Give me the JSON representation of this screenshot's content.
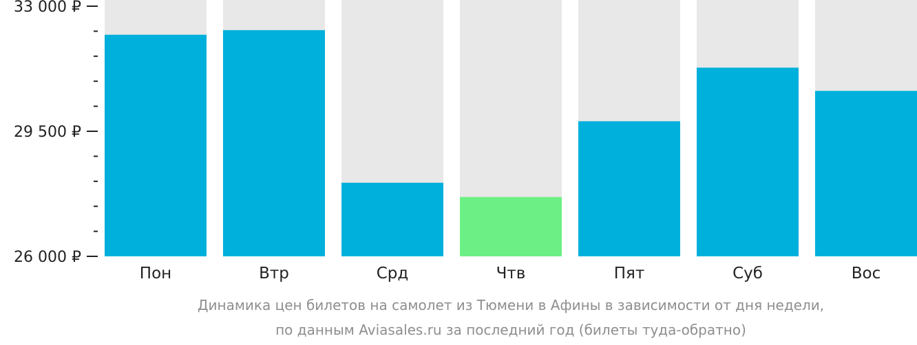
{
  "chart_data": {
    "type": "bar",
    "categories": [
      "Пон",
      "Втр",
      "Срд",
      "Чтв",
      "Пят",
      "Суб",
      "Вос"
    ],
    "values": [
      32200,
      32330,
      28060,
      27660,
      29780,
      31280,
      30630
    ],
    "ylim": [
      26000,
      33000
    ],
    "yticks": [
      {
        "value": 33000,
        "label": "33 000 ₽"
      },
      {
        "value": 29500,
        "label": "29 500 ₽"
      },
      {
        "value": 26000,
        "label": "26 000 ₽"
      }
    ],
    "minor_tick_step": 700,
    "highlight_index": 3,
    "colors": {
      "bar": "#00b0dc",
      "highlight": "#6cf085",
      "background_column": "#e8e8e8",
      "axis": "#222222"
    },
    "caption_lines": [
      "Динамика цен билетов на самолет из Тюмени в Афины в зависимости от дня недели,",
      "по данным Aviasales.ru за последний год (билеты туда-обратно)"
    ]
  }
}
